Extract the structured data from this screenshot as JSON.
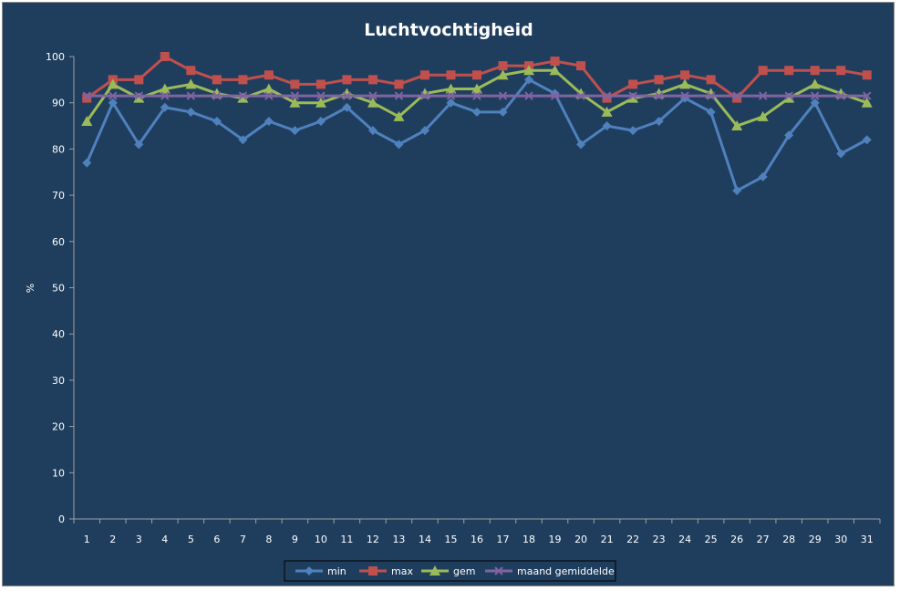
{
  "chart_data": {
    "type": "line",
    "title": "Luchtvochtigheid",
    "xlabel": "",
    "ylabel": "%",
    "ylim": [
      0,
      100
    ],
    "yticks": [
      0,
      10,
      20,
      30,
      40,
      50,
      60,
      70,
      80,
      90,
      100
    ],
    "categories": [
      "1",
      "2",
      "3",
      "4",
      "5",
      "6",
      "7",
      "8",
      "9",
      "10",
      "11",
      "12",
      "13",
      "14",
      "15",
      "16",
      "17",
      "18",
      "19",
      "20",
      "21",
      "22",
      "23",
      "24",
      "25",
      "26",
      "27",
      "28",
      "29",
      "30",
      "31"
    ],
    "grid": false,
    "legend_position": "bottom",
    "background": "#1f3e5e",
    "series": [
      {
        "name": "min",
        "color": "#4f81bd",
        "marker": "diamond",
        "values": [
          77,
          90,
          81,
          89,
          88,
          86,
          82,
          86,
          84,
          86,
          89,
          84,
          81,
          84,
          90,
          88,
          88,
          95,
          92,
          81,
          85,
          84,
          86,
          91,
          88,
          71,
          74,
          83,
          90,
          79,
          82
        ]
      },
      {
        "name": "max",
        "color": "#c0504d",
        "marker": "square",
        "values": [
          91,
          95,
          95,
          100,
          97,
          95,
          95,
          96,
          94,
          94,
          95,
          95,
          94,
          96,
          96,
          96,
          98,
          98,
          99,
          98,
          91,
          94,
          95,
          96,
          95,
          91,
          97,
          97,
          97,
          97,
          96
        ]
      },
      {
        "name": "gem",
        "color": "#9bbb59",
        "marker": "triangle",
        "values": [
          86,
          94,
          91,
          93,
          94,
          92,
          91,
          93,
          90,
          90,
          92,
          90,
          87,
          92,
          93,
          93,
          96,
          97,
          97,
          92,
          88,
          91,
          92,
          94,
          92,
          85,
          87,
          91,
          94,
          92,
          90
        ]
      },
      {
        "name": "maand gemiddelde",
        "color": "#8064a2",
        "marker": "x",
        "values": [
          91.5,
          91.5,
          91.5,
          91.5,
          91.5,
          91.5,
          91.5,
          91.5,
          91.5,
          91.5,
          91.5,
          91.5,
          91.5,
          91.5,
          91.5,
          91.5,
          91.5,
          91.5,
          91.5,
          91.5,
          91.5,
          91.5,
          91.5,
          91.5,
          91.5,
          91.5,
          91.5,
          91.5,
          91.5,
          91.5,
          91.5
        ]
      }
    ]
  }
}
